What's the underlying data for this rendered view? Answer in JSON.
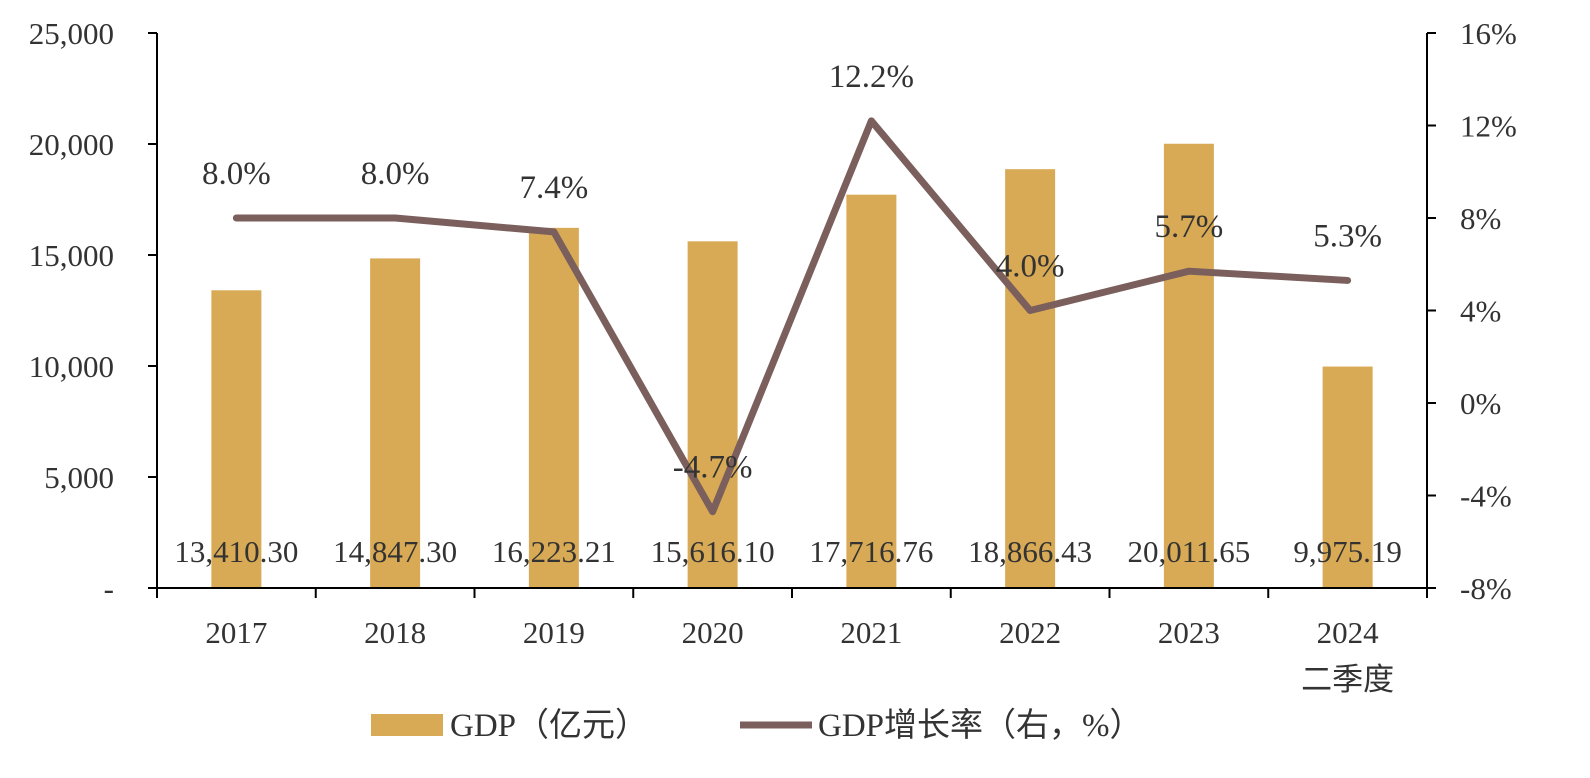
{
  "chart_data": {
    "type": "bar",
    "categories": [
      "2017",
      "2018",
      "2019",
      "2020",
      "2021",
      "2022",
      "2023",
      "2024"
    ],
    "category_sublabels": [
      "",
      "",
      "",
      "",
      "",
      "",
      "",
      "二季度"
    ],
    "series": [
      {
        "name": "GDP（亿元）",
        "type": "bar",
        "axis": "left",
        "color": "#D9AA55",
        "values": [
          13410.3,
          14847.3,
          16223.21,
          15616.1,
          17716.76,
          18866.43,
          20011.65,
          9975.19
        ],
        "labels": [
          "13,410.30",
          "14,847.30",
          "16,223.21",
          "15,616.10",
          "17,716.76",
          "18,866.43",
          "20,011.65",
          "9,975.19"
        ]
      },
      {
        "name": "GDP增长率（右，%）",
        "type": "line",
        "axis": "right",
        "color": "#7A5F5C",
        "values": [
          8.0,
          8.0,
          7.4,
          -4.7,
          12.2,
          4.0,
          5.7,
          5.3
        ],
        "labels": [
          "8.0%",
          "8.0%",
          "7.4%",
          "-4.7%",
          "12.2%",
          "4.0%",
          "5.7%",
          "5.3%"
        ]
      }
    ],
    "y_left": {
      "lim": [
        0,
        25000
      ],
      "ticks": [
        0,
        5000,
        10000,
        15000,
        20000,
        25000
      ],
      "tick_labels": [
        "-",
        "5,000",
        "10,000",
        "15,000",
        "20,000",
        "25,000"
      ]
    },
    "y_right": {
      "lim": [
        -8,
        16
      ],
      "ticks": [
        -8,
        -4,
        0,
        4,
        8,
        12,
        16
      ],
      "tick_labels": [
        "-8%",
        "-4%",
        "0%",
        "4%",
        "8%",
        "12%",
        "16%"
      ]
    },
    "grid": false,
    "legend_position": "bottom"
  }
}
